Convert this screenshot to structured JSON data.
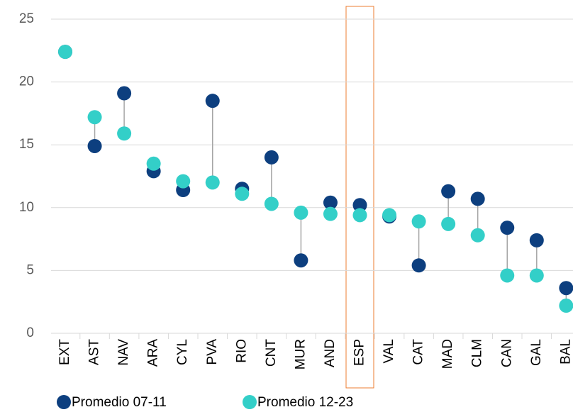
{
  "chart_data": {
    "type": "dumbbell",
    "categories": [
      "EXT",
      "AST",
      "NAV",
      "ARA",
      "CYL",
      "PVA",
      "RIO",
      "CNT",
      "MUR",
      "AND",
      "ESP",
      "VAL",
      "CAT",
      "MAD",
      "CLM",
      "CAN",
      "GAL",
      "BAL"
    ],
    "series": [
      {
        "name": "Promedio 07-11",
        "color": "#0d3f7f",
        "values": [
          22.4,
          14.9,
          19.1,
          12.9,
          11.4,
          18.5,
          11.5,
          14.0,
          5.8,
          10.4,
          10.2,
          9.3,
          5.4,
          11.3,
          10.7,
          8.4,
          7.4,
          3.6
        ]
      },
      {
        "name": "Promedio 12-23",
        "color": "#33cfc8",
        "values": [
          22.4,
          17.2,
          15.9,
          13.5,
          12.1,
          12.0,
          11.1,
          10.3,
          9.6,
          9.5,
          9.4,
          9.4,
          8.9,
          8.7,
          7.8,
          4.6,
          4.6,
          2.2
        ]
      }
    ],
    "ylim": [
      0,
      25
    ],
    "yticks": [
      0,
      5,
      10,
      15,
      20,
      25
    ],
    "grid": true
  }
}
